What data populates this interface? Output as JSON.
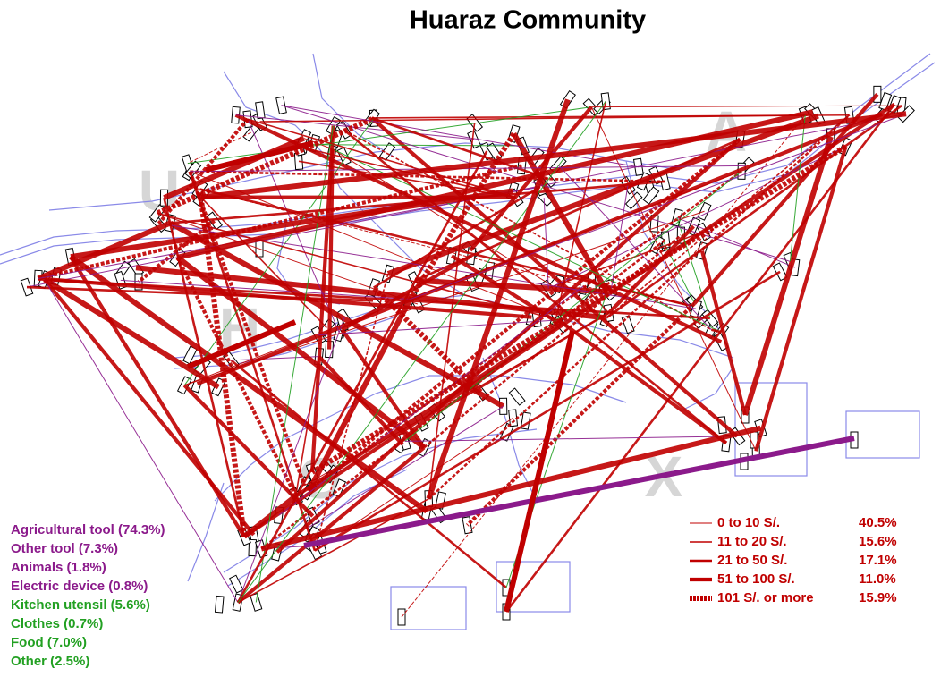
{
  "title": "Huaraz Community",
  "watermark": [
    "U",
    "H",
    "A",
    "G",
    "X"
  ],
  "item_legend": [
    {
      "label": "Agricultural tool (74.3%)",
      "color": "#8b1a8b"
    },
    {
      "label": "Other tool (7.3%)",
      "color": "#8b1a8b"
    },
    {
      "label": "Animals (1.8%)",
      "color": "#8b1a8b"
    },
    {
      "label": "Electric device (0.8%)",
      "color": "#8b1a8b"
    },
    {
      "label": "Kitchen utensil (5.6%)",
      "color": "#22a022"
    },
    {
      "label": "Clothes (0.7%)",
      "color": "#22a022"
    },
    {
      "label": "Food (7.0%)",
      "color": "#22a022"
    },
    {
      "label": "Other (2.5%)",
      "color": "#22a022"
    }
  ],
  "value_legend": {
    "color": "#c00000",
    "entries": [
      {
        "label": "0 to 10 S/.",
        "share": "40.5%"
      },
      {
        "label": "11 to 20 S/.",
        "share": "15.6%"
      },
      {
        "label": "21 to 50 S/.",
        "share": "17.1%"
      },
      {
        "label": "51 to 100 S/.",
        "share": "11.0%"
      },
      {
        "label": "101 S/. or more",
        "share": "15.9%"
      }
    ]
  }
}
